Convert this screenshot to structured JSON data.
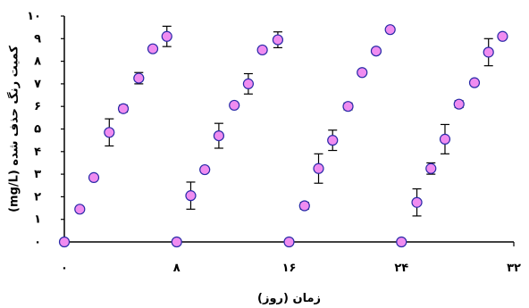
{
  "chart_data": {
    "type": "scatter",
    "xlabel": "زمان (روز)",
    "ylabel": "کمیت رنگ حذف شده (mg/L)",
    "xlim": [
      0,
      32
    ],
    "ylim": [
      0,
      10
    ],
    "x_ticks": [
      {
        "value": 0,
        "label": "۰"
      },
      {
        "value": 8,
        "label": "۸"
      },
      {
        "value": 16,
        "label": "۱۶"
      },
      {
        "value": 24,
        "label": "۲۴"
      },
      {
        "value": 32,
        "label": "۳۲"
      }
    ],
    "y_ticks": [
      {
        "value": 0,
        "label": "۰"
      },
      {
        "value": 1,
        "label": "۱"
      },
      {
        "value": 2,
        "label": "۲"
      },
      {
        "value": 3,
        "label": "۳"
      },
      {
        "value": 4,
        "label": "۴"
      },
      {
        "value": 5,
        "label": "۵"
      },
      {
        "value": 6,
        "label": "۶"
      },
      {
        "value": 7,
        "label": "۷"
      },
      {
        "value": 8,
        "label": "۸"
      },
      {
        "value": 9,
        "label": "۹"
      },
      {
        "value": 10,
        "label": "۱۰"
      }
    ],
    "grid": false,
    "legend": "none",
    "marker_fill": "#f08cf0",
    "marker_stroke": "#2a2aa8",
    "series": [
      {
        "points": [
          {
            "x": 0,
            "y": 0
          },
          {
            "x": 1.1,
            "y": 1.45
          },
          {
            "x": 2.1,
            "y": 2.85
          },
          {
            "x": 3.2,
            "y": 4.85,
            "err": 0.6
          },
          {
            "x": 4.2,
            "y": 5.9,
            "err": 0.15
          },
          {
            "x": 5.3,
            "y": 7.25,
            "err": 0.25
          },
          {
            "x": 6.3,
            "y": 8.55
          },
          {
            "x": 7.3,
            "y": 9.1,
            "err": 0.45
          },
          {
            "x": 8.0,
            "y": 0
          },
          {
            "x": 9.0,
            "y": 2.05,
            "err": 0.6
          },
          {
            "x": 10.0,
            "y": 3.2
          },
          {
            "x": 11.0,
            "y": 4.7,
            "err": 0.55
          },
          {
            "x": 12.1,
            "y": 6.05
          },
          {
            "x": 13.1,
            "y": 7.0,
            "err": 0.45
          },
          {
            "x": 14.1,
            "y": 8.5
          },
          {
            "x": 15.2,
            "y": 8.95,
            "err": 0.35
          },
          {
            "x": 16.0,
            "y": 0
          },
          {
            "x": 17.1,
            "y": 1.6,
            "err": 0.15
          },
          {
            "x": 18.1,
            "y": 3.25,
            "err": 0.65
          },
          {
            "x": 19.1,
            "y": 4.5,
            "err": 0.45
          },
          {
            "x": 20.2,
            "y": 6.0,
            "err": 0.15
          },
          {
            "x": 21.2,
            "y": 7.5
          },
          {
            "x": 22.2,
            "y": 8.45
          },
          {
            "x": 23.2,
            "y": 9.4
          },
          {
            "x": 24.0,
            "y": 0
          },
          {
            "x": 25.1,
            "y": 1.75,
            "err": 0.6
          },
          {
            "x": 26.1,
            "y": 3.25,
            "err": 0.25
          },
          {
            "x": 27.1,
            "y": 4.55,
            "err": 0.65
          },
          {
            "x": 28.1,
            "y": 6.1,
            "err": 0.15
          },
          {
            "x": 29.2,
            "y": 7.05
          },
          {
            "x": 30.2,
            "y": 8.4,
            "err": 0.6
          },
          {
            "x": 31.2,
            "y": 9.1
          }
        ]
      }
    ]
  }
}
